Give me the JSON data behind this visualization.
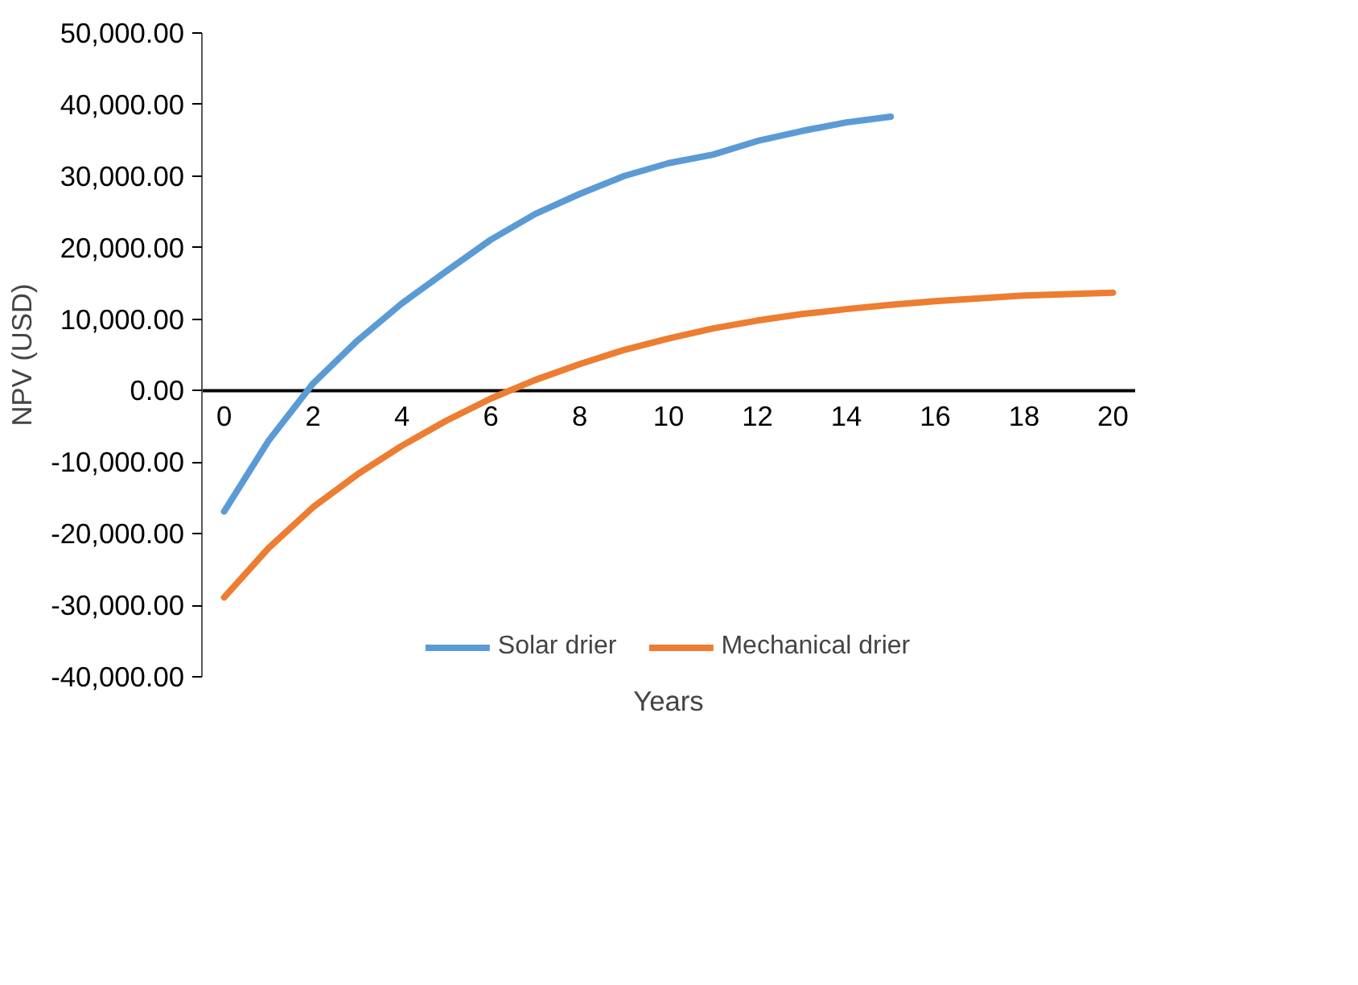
{
  "chart_data": {
    "type": "line",
    "xlabel": "Years",
    "ylabel": "NPV (USD)",
    "x": [
      0,
      1,
      2,
      3,
      4,
      5,
      6,
      7,
      8,
      9,
      10,
      11,
      12,
      13,
      14,
      15,
      16,
      17,
      18,
      19,
      20
    ],
    "series": [
      {
        "name": "Solar drier",
        "color": "#5b9bd5",
        "values": [
          -16900,
          -7000,
          1000,
          7000,
          12200,
          16700,
          21100,
          24700,
          27500,
          30000,
          31800,
          33000,
          34900,
          36300,
          37500,
          38300,
          null,
          null,
          null,
          null,
          null
        ]
      },
      {
        "name": "Mechanical drier",
        "color": "#ed7d31",
        "values": [
          -28900,
          -22000,
          -16300,
          -11700,
          -7700,
          -4200,
          -1100,
          1500,
          3700,
          5700,
          7300,
          8700,
          9800,
          10700,
          11400,
          12000,
          12500,
          12900,
          13300,
          13500,
          13700
        ]
      }
    ],
    "xlim": [
      -0.5,
      20.5
    ],
    "xticks": [
      0,
      2,
      4,
      6,
      8,
      10,
      12,
      14,
      16,
      18,
      20
    ],
    "ylim": [
      -40000,
      50000
    ],
    "yticks": [
      {
        "value": -40000,
        "label": "-40,000.00"
      },
      {
        "value": -30000,
        "label": "-30,000.00"
      },
      {
        "value": -20000,
        "label": "-20,000.00"
      },
      {
        "value": -10000,
        "label": "-10,000.00"
      },
      {
        "value": 0,
        "label": "0.00"
      },
      {
        "value": 10000,
        "label": "10,000.00"
      },
      {
        "value": 20000,
        "label": "20,000.00"
      },
      {
        "value": 30000,
        "label": "30,000.00"
      },
      {
        "value": 40000,
        "label": "40,000.00"
      },
      {
        "value": 50000,
        "label": "50,000.00"
      }
    ],
    "grid": false,
    "legend": "bottom",
    "line_style": "solid",
    "marker": "none"
  }
}
